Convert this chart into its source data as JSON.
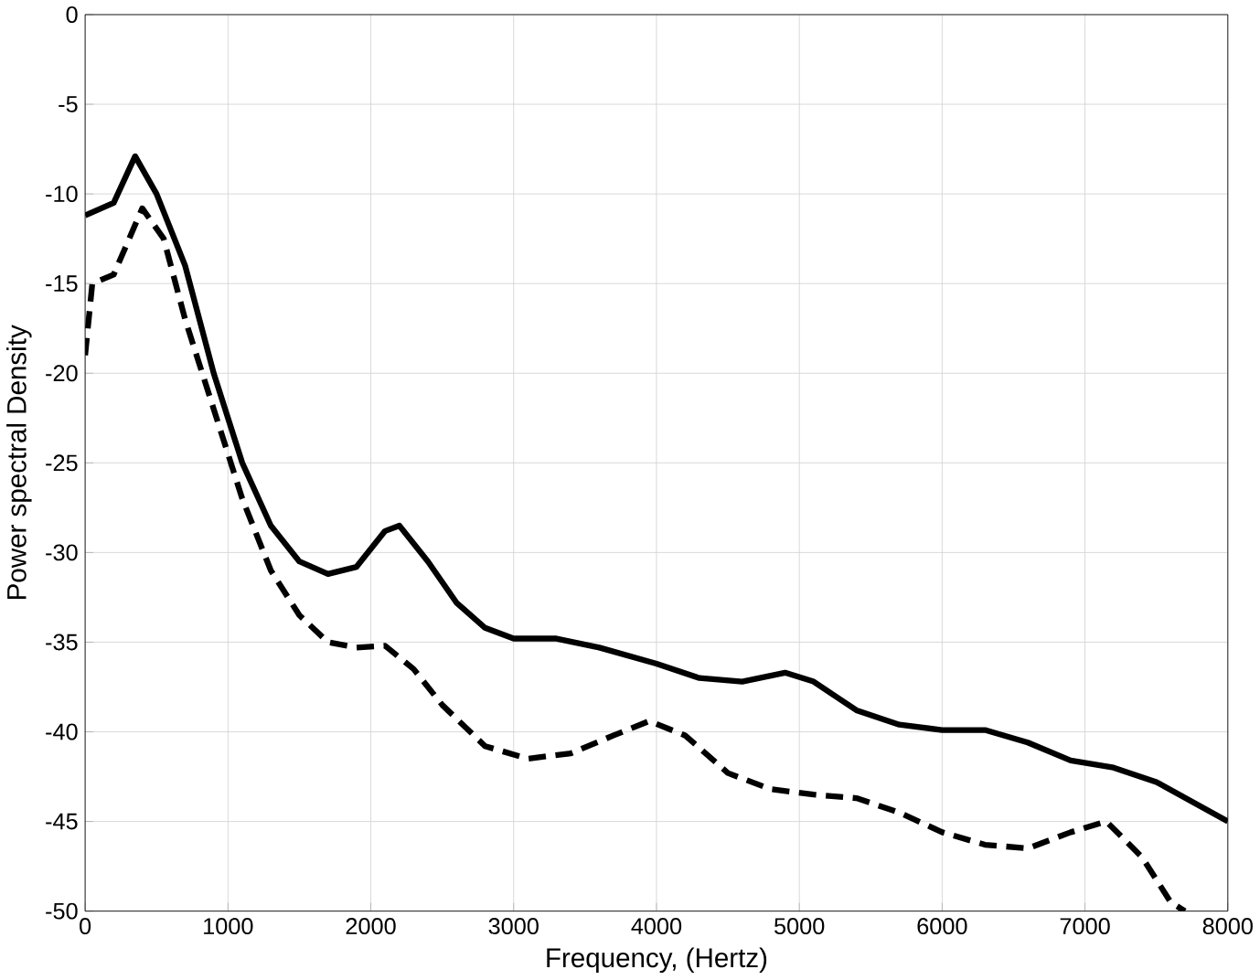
{
  "chart_data": {
    "type": "line",
    "xlabel": "Frequency, (Hertz)",
    "ylabel": "Power spectral Density",
    "xlim": [
      0,
      8000
    ],
    "ylim": [
      -50,
      0
    ],
    "xticks": [
      0,
      1000,
      2000,
      3000,
      4000,
      5000,
      6000,
      7000,
      8000
    ],
    "yticks": [
      -50,
      -45,
      -40,
      -35,
      -30,
      -25,
      -20,
      -15,
      -10,
      -5,
      0
    ],
    "grid": true,
    "marker": "none",
    "series": [
      {
        "color": "#000000",
        "line_style": "solid",
        "x": [
          0,
          200,
          350,
          500,
          700,
          900,
          1100,
          1300,
          1500,
          1700,
          1900,
          2100,
          2200,
          2400,
          2600,
          2800,
          3000,
          3300,
          3600,
          4000,
          4300,
          4600,
          4900,
          5100,
          5400,
          5700,
          6000,
          6300,
          6600,
          6900,
          7200,
          7500,
          8000
        ],
        "values": [
          -11.2,
          -10.5,
          -7.9,
          -10,
          -14,
          -20,
          -25,
          -28.5,
          -30.5,
          -31.2,
          -30.8,
          -28.8,
          -28.5,
          -30.5,
          -32.8,
          -34.2,
          -34.8,
          -34.8,
          -35.3,
          -36.2,
          -37,
          -37.2,
          -36.7,
          -37.2,
          -38.8,
          -39.6,
          -39.9,
          -39.9,
          -40.6,
          -41.6,
          -42,
          -42.8,
          -45
        ]
      },
      {
        "color": "#000000",
        "line_style": "dashed",
        "x": [
          0,
          50,
          200,
          400,
          550,
          700,
          900,
          1100,
          1300,
          1500,
          1700,
          1900,
          2100,
          2300,
          2500,
          2800,
          3100,
          3400,
          3700,
          3950,
          4200,
          4500,
          4800,
          5100,
          5400,
          5700,
          6000,
          6300,
          6600,
          6900,
          7150,
          7400,
          7600,
          7700
        ],
        "values": [
          -19,
          -15,
          -14.5,
          -10.8,
          -12.5,
          -17,
          -22,
          -27,
          -31,
          -33.5,
          -35,
          -35.3,
          -35.2,
          -36.5,
          -38.5,
          -40.8,
          -41.5,
          -41.2,
          -40.2,
          -39.4,
          -40.2,
          -42.3,
          -43.2,
          -43.5,
          -43.7,
          -44.5,
          -45.6,
          -46.3,
          -46.5,
          -45.6,
          -45,
          -47,
          -49.5,
          -50
        ]
      }
    ]
  }
}
